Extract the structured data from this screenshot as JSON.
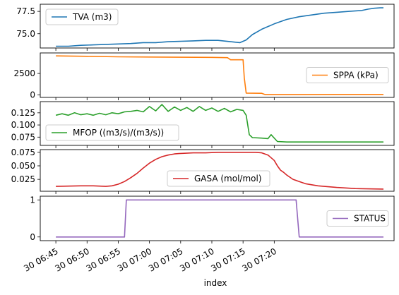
{
  "chart_data": {
    "type": "line",
    "xlabel": "index",
    "x_ticks": [
      "30 06:45",
      "30 06:50",
      "30 06:55",
      "30 07:00",
      "30 07:05",
      "30 07:10",
      "30 07:15",
      "30 07:20"
    ],
    "series": [
      {
        "name": "TVA (m3)",
        "color": "#1f77b4",
        "legend": "upper-left",
        "yticks": [
          "75.0",
          "77.5"
        ],
        "ylim": [
          73.4,
          78.3
        ],
        "points": [
          [
            0,
            73.6
          ],
          [
            2,
            73.6
          ],
          [
            4,
            73.7
          ],
          [
            6,
            73.75
          ],
          [
            8,
            73.8
          ],
          [
            10,
            73.85
          ],
          [
            12,
            73.9
          ],
          [
            14,
            74.0
          ],
          [
            16,
            74.0
          ],
          [
            18,
            74.1
          ],
          [
            20,
            74.15
          ],
          [
            22,
            74.2
          ],
          [
            24,
            74.25
          ],
          [
            26,
            74.25
          ],
          [
            28,
            74.1
          ],
          [
            29.5,
            74.0
          ],
          [
            30.5,
            74.3
          ],
          [
            31.5,
            74.9
          ],
          [
            33,
            75.5
          ],
          [
            35,
            76.1
          ],
          [
            37,
            76.6
          ],
          [
            39,
            76.9
          ],
          [
            41,
            77.1
          ],
          [
            43,
            77.3
          ],
          [
            45,
            77.4
          ],
          [
            47,
            77.5
          ],
          [
            49,
            77.6
          ],
          [
            50,
            77.75
          ],
          [
            51,
            77.85
          ],
          [
            52,
            77.9
          ],
          [
            52.5,
            77.9
          ]
        ]
      },
      {
        "name": "SPPA (kPa)",
        "color": "#ff7f0e",
        "legend": "center-right",
        "yticks": [
          "0",
          "2500"
        ],
        "ylim": [
          -300,
          4900
        ],
        "points": [
          [
            0,
            4550
          ],
          [
            5,
            4500
          ],
          [
            10,
            4450
          ],
          [
            15,
            4420
          ],
          [
            20,
            4400
          ],
          [
            25,
            4380
          ],
          [
            27.5,
            4350
          ],
          [
            28,
            4100
          ],
          [
            30,
            4100
          ],
          [
            30.2,
            2000
          ],
          [
            30.5,
            200
          ],
          [
            33,
            180
          ],
          [
            33.5,
            40
          ],
          [
            40,
            40
          ],
          [
            45,
            50
          ],
          [
            52.5,
            50
          ]
        ]
      },
      {
        "name": "MFOP ((m3/s)/(m3/s))",
        "color": "#2ca02c",
        "legend": "lower-left",
        "yticks": [
          "0.075",
          "0.100",
          "0.125"
        ],
        "ylim": [
          0.058,
          0.148
        ],
        "points": [
          [
            0,
            0.12
          ],
          [
            1,
            0.123
          ],
          [
            2,
            0.12
          ],
          [
            3,
            0.125
          ],
          [
            4,
            0.121
          ],
          [
            5,
            0.123
          ],
          [
            6,
            0.12
          ],
          [
            7,
            0.124
          ],
          [
            8,
            0.121
          ],
          [
            9,
            0.125
          ],
          [
            10,
            0.123
          ],
          [
            11,
            0.127
          ],
          [
            12,
            0.128
          ],
          [
            13,
            0.13
          ],
          [
            14,
            0.127
          ],
          [
            15,
            0.138
          ],
          [
            16,
            0.129
          ],
          [
            17,
            0.142
          ],
          [
            18,
            0.128
          ],
          [
            19,
            0.137
          ],
          [
            20,
            0.13
          ],
          [
            21,
            0.136
          ],
          [
            22,
            0.128
          ],
          [
            23,
            0.138
          ],
          [
            24,
            0.13
          ],
          [
            25,
            0.135
          ],
          [
            26,
            0.128
          ],
          [
            27,
            0.134
          ],
          [
            28,
            0.127
          ],
          [
            29,
            0.132
          ],
          [
            30,
            0.13
          ],
          [
            30.5,
            0.12
          ],
          [
            31,
            0.08
          ],
          [
            31.5,
            0.074
          ],
          [
            33,
            0.073
          ],
          [
            34,
            0.072
          ],
          [
            34.5,
            0.08
          ],
          [
            35.5,
            0.066
          ],
          [
            37,
            0.065
          ],
          [
            40,
            0.065
          ],
          [
            45,
            0.065
          ],
          [
            52.5,
            0.065
          ]
        ]
      },
      {
        "name": "GASA (mol/mol)",
        "color": "#d62728",
        "legend": "lower-center",
        "yticks": [
          "0.025",
          "0.050",
          "0.075"
        ],
        "ylim": [
          0.003,
          0.08
        ],
        "points": [
          [
            0,
            0.012
          ],
          [
            4,
            0.013
          ],
          [
            6,
            0.013
          ],
          [
            8,
            0.012
          ],
          [
            9,
            0.013
          ],
          [
            10,
            0.016
          ],
          [
            11,
            0.021
          ],
          [
            12,
            0.028
          ],
          [
            13,
            0.036
          ],
          [
            14,
            0.046
          ],
          [
            15,
            0.055
          ],
          [
            16,
            0.062
          ],
          [
            17,
            0.067
          ],
          [
            18,
            0.07
          ],
          [
            19,
            0.072
          ],
          [
            20,
            0.073
          ],
          [
            22,
            0.074
          ],
          [
            24,
            0.074
          ],
          [
            26,
            0.075
          ],
          [
            28,
            0.075
          ],
          [
            30,
            0.075
          ],
          [
            32,
            0.075
          ],
          [
            33,
            0.074
          ],
          [
            34,
            0.07
          ],
          [
            35,
            0.06
          ],
          [
            35.5,
            0.05
          ],
          [
            36,
            0.042
          ],
          [
            36.5,
            0.038
          ],
          [
            37,
            0.033
          ],
          [
            38,
            0.025
          ],
          [
            39,
            0.021
          ],
          [
            40,
            0.017
          ],
          [
            42,
            0.013
          ],
          [
            45,
            0.01
          ],
          [
            48,
            0.008
          ],
          [
            52.5,
            0.007
          ]
        ]
      },
      {
        "name": "STATUS",
        "color": "#9467bd",
        "legend": "center-right",
        "yticks": [
          "0",
          "1"
        ],
        "ylim": [
          -0.1,
          1.1
        ],
        "points": [
          [
            0,
            0
          ],
          [
            11,
            0
          ],
          [
            11.3,
            1
          ],
          [
            38.5,
            1
          ],
          [
            39,
            0
          ],
          [
            52.5,
            0
          ]
        ]
      }
    ]
  }
}
